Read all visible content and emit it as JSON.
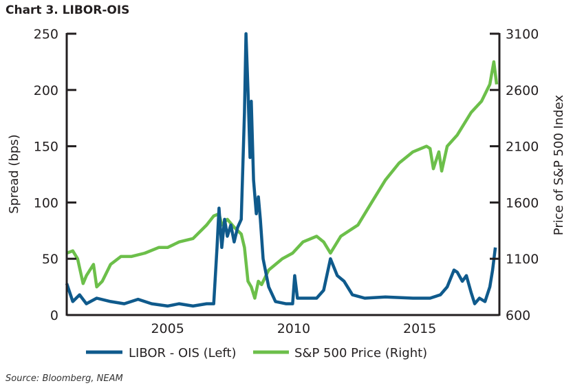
{
  "title": "Chart 3. LIBOR-OIS",
  "source": "Source: Bloomberg, NEAM",
  "chart_data": {
    "type": "line",
    "title": "Chart 3. LIBOR-OIS",
    "ylabel": "Spread (bps)",
    "y2label": "Price of S&P 500 Index",
    "xlim": [
      2001.0,
      2018.16
    ],
    "ylim": [
      0,
      250
    ],
    "y2lim": [
      600,
      3100
    ],
    "xticks": [
      "2005",
      "2010",
      "2015"
    ],
    "xtick_values": [
      2005,
      2010,
      2015
    ],
    "yticks": [
      "0",
      "50",
      "100",
      "150",
      "200",
      "250"
    ],
    "y2ticks": [
      "600",
      "1100",
      "1600",
      "2100",
      "2600",
      "3100"
    ],
    "grid": false,
    "legend_position": "bottom",
    "series": [
      {
        "name": "S&P 500 Price (Right)",
        "axis": "right",
        "color": "#6cbf4a",
        "x": [
          2001.0,
          2001.24,
          2001.43,
          2001.65,
          2001.78,
          2002.06,
          2002.19,
          2002.41,
          2002.74,
          2003.15,
          2003.56,
          2004.1,
          2004.65,
          2005.0,
          2005.46,
          2006.01,
          2006.55,
          2006.83,
          2007.04,
          2007.15,
          2007.37,
          2007.64,
          2007.92,
          2008.05,
          2008.19,
          2008.32,
          2008.46,
          2008.6,
          2008.73,
          2009.01,
          2009.55,
          2009.96,
          2010.37,
          2010.91,
          2011.19,
          2011.46,
          2011.87,
          2012.55,
          2013.09,
          2013.64,
          2014.18,
          2014.73,
          2015.27,
          2015.41,
          2015.54,
          2015.76,
          2015.87,
          2016.09,
          2016.49,
          2017.04,
          2017.45,
          2017.78,
          2017.94,
          2018.05
        ],
        "y": [
          1150,
          1170,
          1100,
          880,
          950,
          1050,
          850,
          900,
          1050,
          1120,
          1120,
          1150,
          1200,
          1200,
          1250,
          1280,
          1400,
          1480,
          1500,
          1400,
          1450,
          1380,
          1320,
          1200,
          900,
          850,
          750,
          900,
          870,
          1000,
          1100,
          1150,
          1250,
          1300,
          1250,
          1150,
          1300,
          1400,
          1600,
          1800,
          1950,
          2050,
          2100,
          2080,
          1900,
          2050,
          1880,
          2100,
          2200,
          2400,
          2500,
          2650,
          2850,
          2650
        ]
      },
      {
        "name": "LIBOR - OIS (Left)",
        "axis": "left",
        "color": "#0f5a8c",
        "x": [
          2001.0,
          2001.24,
          2001.51,
          2001.78,
          2002.19,
          2002.74,
          2003.28,
          2003.83,
          2004.37,
          2005.0,
          2005.46,
          2006.01,
          2006.55,
          2006.83,
          2006.96,
          2007.04,
          2007.15,
          2007.26,
          2007.37,
          2007.51,
          2007.64,
          2007.78,
          2007.92,
          2008.05,
          2008.11,
          2008.19,
          2008.27,
          2008.32,
          2008.41,
          2008.52,
          2008.6,
          2008.68,
          2008.79,
          2009.01,
          2009.28,
          2009.69,
          2009.96,
          2010.04,
          2010.15,
          2010.5,
          2010.91,
          2011.19,
          2011.46,
          2011.73,
          2012.0,
          2012.33,
          2012.82,
          2013.64,
          2014.73,
          2015.41,
          2015.82,
          2016.09,
          2016.36,
          2016.49,
          2016.69,
          2016.85,
          2017.04,
          2017.18,
          2017.37,
          2017.59,
          2017.78,
          2017.89,
          2018.0
        ],
        "y": [
          28,
          12,
          18,
          10,
          15,
          12,
          10,
          14,
          10,
          8,
          10,
          8,
          10,
          10,
          60,
          95,
          60,
          85,
          70,
          80,
          65,
          78,
          85,
          180,
          250,
          200,
          140,
          190,
          120,
          90,
          105,
          85,
          50,
          25,
          12,
          10,
          10,
          35,
          15,
          15,
          15,
          22,
          50,
          35,
          30,
          18,
          15,
          16,
          15,
          15,
          18,
          25,
          40,
          38,
          30,
          35,
          20,
          10,
          15,
          12,
          25,
          40,
          60
        ]
      }
    ]
  }
}
